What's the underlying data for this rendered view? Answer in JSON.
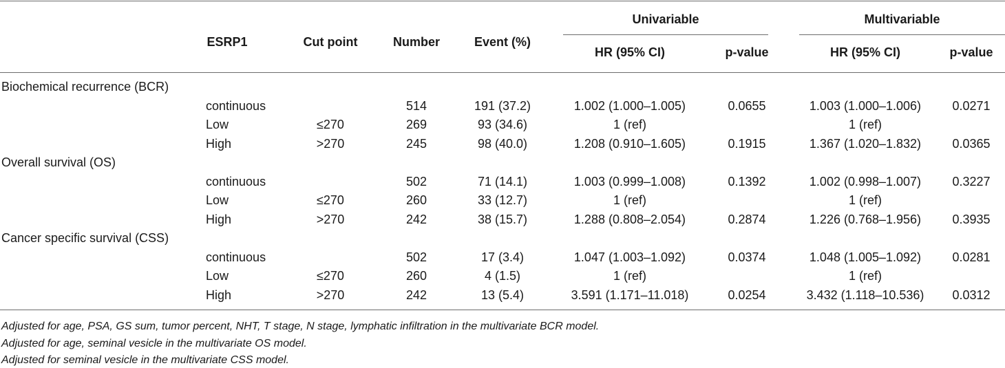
{
  "table": {
    "headers": {
      "esrp1": "ESRP1",
      "cut_point": "Cut point",
      "number": "Number",
      "event": "Event (%)",
      "univariable": "Univariable",
      "multivariable": "Multivariable",
      "hr": "HR (95% CI)",
      "pvalue": "p-value"
    },
    "sections": [
      {
        "title": "Biochemical recurrence (BCR)",
        "rows": [
          {
            "esrp1": "continuous",
            "cut": "",
            "number": "514",
            "event": "191 (37.2)",
            "uni_hr": "1.002 (1.000–1.005)",
            "uni_p": "0.0655",
            "multi_hr": "1.003 (1.000–1.006)",
            "multi_p": "0.0271"
          },
          {
            "esrp1": "Low",
            "cut": "≤270",
            "number": "269",
            "event": "93 (34.6)",
            "uni_hr": "1 (ref)",
            "uni_p": "",
            "multi_hr": "1 (ref)",
            "multi_p": ""
          },
          {
            "esrp1": "High",
            "cut": ">270",
            "number": "245",
            "event": "98 (40.0)",
            "uni_hr": "1.208 (0.910–1.605)",
            "uni_p": "0.1915",
            "multi_hr": "1.367 (1.020–1.832)",
            "multi_p": "0.0365"
          }
        ]
      },
      {
        "title": "Overall survival (OS)",
        "rows": [
          {
            "esrp1": "continuous",
            "cut": "",
            "number": "502",
            "event": "71 (14.1)",
            "uni_hr": "1.003 (0.999–1.008)",
            "uni_p": "0.1392",
            "multi_hr": "1.002 (0.998–1.007)",
            "multi_p": "0.3227"
          },
          {
            "esrp1": "Low",
            "cut": "≤270",
            "number": "260",
            "event": "33 (12.7)",
            "uni_hr": "1 (ref)",
            "uni_p": "",
            "multi_hr": "1 (ref)",
            "multi_p": ""
          },
          {
            "esrp1": "High",
            "cut": ">270",
            "number": "242",
            "event": "38 (15.7)",
            "uni_hr": "1.288 (0.808–2.054)",
            "uni_p": "0.2874",
            "multi_hr": "1.226 (0.768–1.956)",
            "multi_p": "0.3935"
          }
        ]
      },
      {
        "title": "Cancer specific survival (CSS)",
        "rows": [
          {
            "esrp1": "continuous",
            "cut": "",
            "number": "502",
            "event": "17 (3.4)",
            "uni_hr": "1.047 (1.003–1.092)",
            "uni_p": "0.0374",
            "multi_hr": "1.048 (1.005–1.092)",
            "multi_p": "0.0281"
          },
          {
            "esrp1": "Low",
            "cut": "≤270",
            "number": "260",
            "event": "4 (1.5)",
            "uni_hr": "1 (ref)",
            "uni_p": "",
            "multi_hr": "1 (ref)",
            "multi_p": ""
          },
          {
            "esrp1": "High",
            "cut": ">270",
            "number": "242",
            "event": "13 (5.4)",
            "uni_hr": "3.591 (1.171–11.018)",
            "uni_p": "0.0254",
            "multi_hr": "3.432 (1.118–10.536)",
            "multi_p": "0.0312"
          }
        ]
      }
    ]
  },
  "footnotes": [
    "Adjusted for age, PSA, GS sum, tumor percent, NHT, T stage, N stage, lymphatic infiltration in the multivariate BCR model.",
    "Adjusted for age, seminal vesicle in the multivariate OS model.",
    "Adjusted for seminal vesicle in the multivariate CSS model."
  ]
}
